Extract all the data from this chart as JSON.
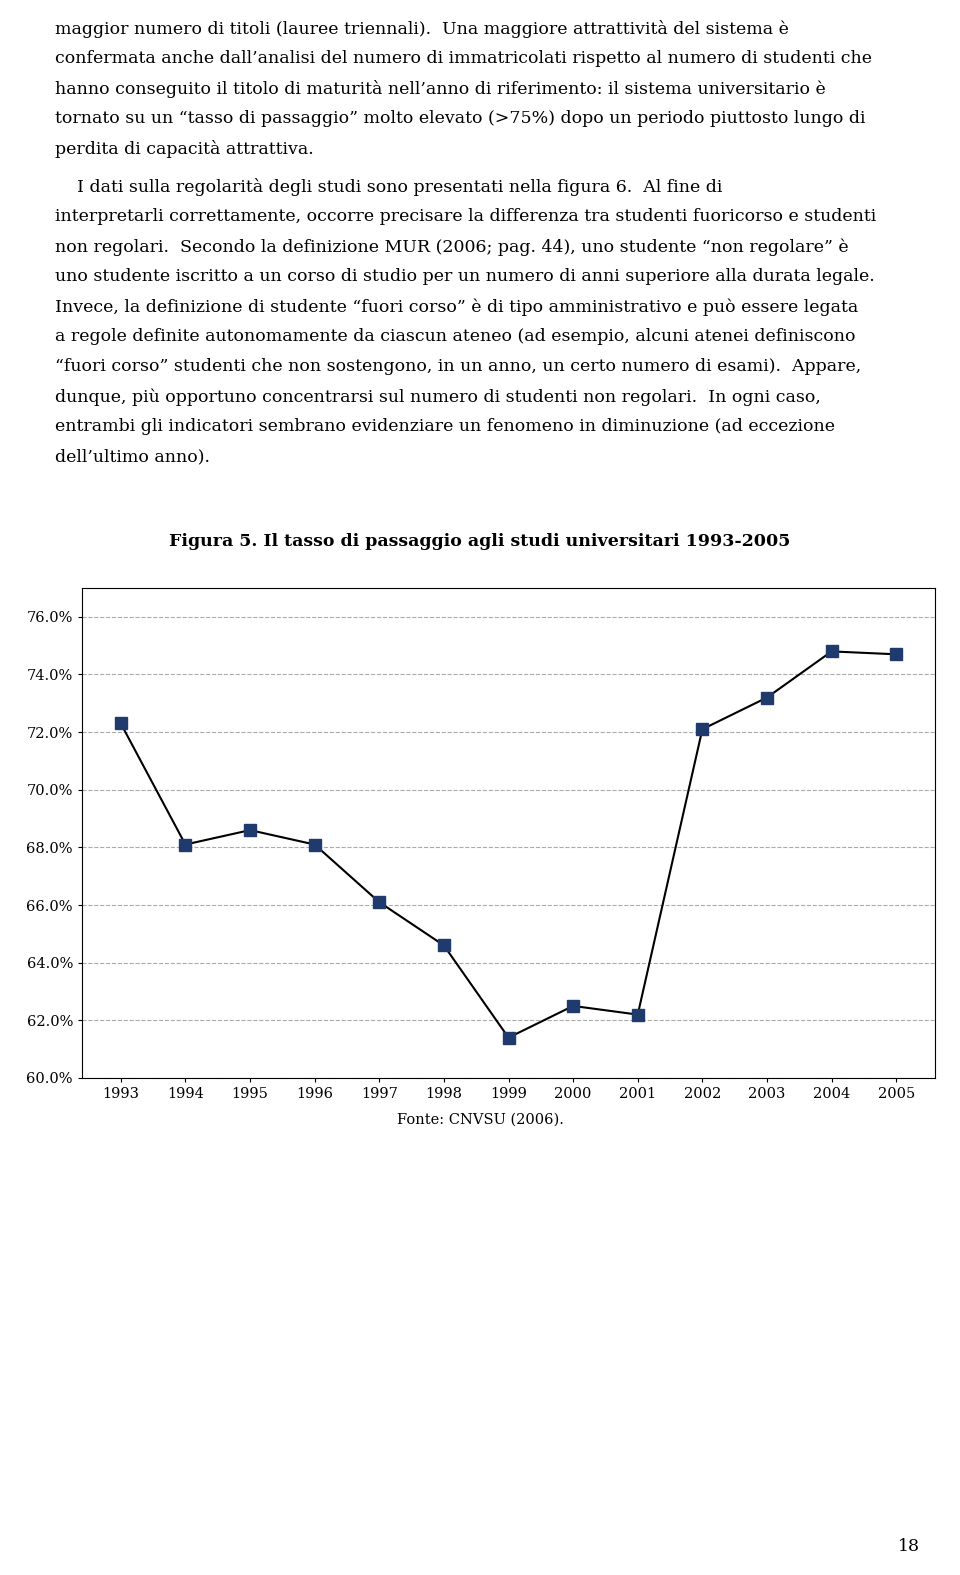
{
  "title": "Figura 5. Il tasso di passaggio agli studi universitari 1993-2005",
  "source": "Fonte: CNVSU (2006).",
  "years": [
    1993,
    1994,
    1995,
    1996,
    1997,
    1998,
    1999,
    2000,
    2001,
    2002,
    2003,
    2004,
    2005
  ],
  "values": [
    0.723,
    0.681,
    0.686,
    0.681,
    0.661,
    0.646,
    0.614,
    0.625,
    0.622,
    0.721,
    0.732,
    0.748,
    0.747
  ],
  "ylim_min": 0.6,
  "ylim_max": 0.77,
  "yticks": [
    0.6,
    0.62,
    0.64,
    0.66,
    0.68,
    0.7,
    0.72,
    0.74,
    0.76
  ],
  "line_color": "#000000",
  "marker_color": "#1F3B6E",
  "marker_size": 8,
  "grid_color": "#AAAAAA",
  "background_color": "#FFFFFF",
  "plot_bg_color": "#FFFFFF",
  "title_fontsize": 12.5,
  "tick_fontsize": 10.5,
  "source_fontsize": 10.5,
  "body_fontsize": 12.5,
  "page_number": "18",
  "para1_lines": [
    "maggior numero di titoli (lauree triennali).  Una maggiore attrattività del sistema è",
    "confermata anche dall’analisi del numero di immatricolati rispetto al numero di studenti che",
    "hanno conseguito il titolo di maturità nell’anno di riferimento: il sistema universitario è",
    "tornato su un “tasso di passaggio” molto elevato (>75%) dopo un periodo piuttosto lungo di",
    "perdita di capacità attrattiva."
  ],
  "para2_lines": [
    "    I dati sulla regolarità degli studi sono presentati nella figura 6.  Al fine di",
    "interpretarli correttamente, occorre precisare la differenza tra studenti fuoricorso e studenti",
    "non regolari.  Secondo la definizione MUR (2006; pag. 44), uno studente “non regolare” è",
    "uno studente iscritto a un corso di studio per un numero di anni superiore alla durata legale.",
    "Invece, la definizione di studente “fuori corso” è di tipo amministrativo e può essere legata",
    "a regole definite autonomamente da ciascun ateneo (ad esempio, alcuni atenei definiscono",
    "“fuori corso” studenti che non sostengono, in un anno, un certo numero di esami).  Appare,",
    "dunque, più opportuno concentrarsi sul numero di studenti non regolari.  In ogni caso,",
    "entrambi gli indicatori sembrano evidenziare un fenomeno in diminuzione (ad eccezione",
    "dell’ultimo anno)."
  ]
}
